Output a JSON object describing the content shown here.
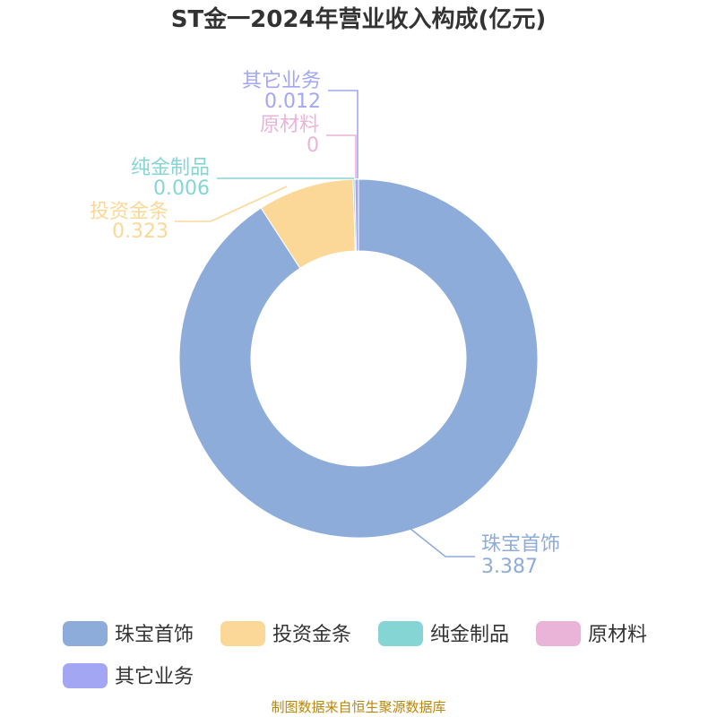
{
  "title": "ST金一2024年营业收入构成(亿元)",
  "source": "制图数据来自恒生聚源数据库",
  "chart_data": {
    "type": "pie",
    "title": "ST金一2024年营业收入构成(亿元)",
    "donut": true,
    "legend_position": "bottom",
    "series": [
      {
        "name": "珠宝首饰",
        "value": 3.387,
        "label": "3.387",
        "color": "#8eacd9"
      },
      {
        "name": "投资金条",
        "value": 0.323,
        "label": "0.323",
        "color": "#fbd898"
      },
      {
        "name": "纯金制品",
        "value": 0.006,
        "label": "0.006",
        "color": "#86d5d5"
      },
      {
        "name": "原材料",
        "value": 0,
        "label": "0",
        "color": "#e9b4d8"
      },
      {
        "name": "其它业务",
        "value": 0.012,
        "label": "0.012",
        "color": "#a3a6f3"
      }
    ]
  }
}
